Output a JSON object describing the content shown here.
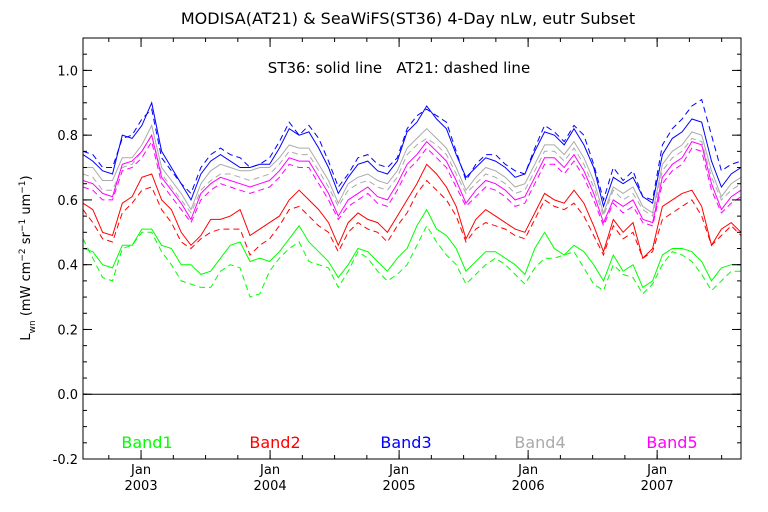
{
  "chart_data": {
    "type": "line",
    "title": "MODISA(AT21) & SeaWiFS(ST36) 4-Day nLw, eutr Subset",
    "annotation": "ST36: solid line   AT21: dashed line",
    "ylabel": "L_wn (mW cm^-2 sr^-1 um^-1)",
    "ylim": [
      -0.2,
      1.1
    ],
    "y_ticks": [
      "-0.2",
      "0.0",
      "0.2",
      "0.4",
      "0.6",
      "0.8",
      "1.0"
    ],
    "x_ticks": [
      {
        "month": "Jan",
        "year": "2003"
      },
      {
        "month": "Jan",
        "year": "2004"
      },
      {
        "month": "Jan",
        "year": "2005"
      },
      {
        "month": "Jan",
        "year": "2006"
      },
      {
        "month": "Jan",
        "year": "2007"
      }
    ],
    "x_start": 2002.55,
    "x_end": 2007.65,
    "step": 0.0833,
    "legend_placement": "bottom",
    "series": [
      {
        "name": "Band1",
        "color": "#00ff00",
        "solid": [
          0.45,
          0.44,
          0.4,
          0.39,
          0.46,
          0.46,
          0.51,
          0.51,
          0.46,
          0.45,
          0.4,
          0.4,
          0.37,
          0.38,
          0.42,
          0.46,
          0.47,
          0.41,
          0.42,
          0.41,
          0.44,
          0.48,
          0.52,
          0.47,
          0.44,
          0.41,
          0.36,
          0.4,
          0.45,
          0.44,
          0.41,
          0.38,
          0.42,
          0.45,
          0.52,
          0.57,
          0.51,
          0.49,
          0.45,
          0.38,
          0.41,
          0.44,
          0.44,
          0.42,
          0.4,
          0.37,
          0.45,
          0.5,
          0.45,
          0.43,
          0.46,
          0.44,
          0.4,
          0.35,
          0.43,
          0.38,
          0.4,
          0.33,
          0.35,
          0.43,
          0.45,
          0.45,
          0.44,
          0.41,
          0.35,
          0.39,
          0.4,
          0.4
        ],
        "dashed": [
          0.48,
          0.42,
          0.36,
          0.35,
          0.45,
          0.46,
          0.5,
          0.5,
          0.44,
          0.4,
          0.35,
          0.34,
          0.33,
          0.33,
          0.38,
          0.4,
          0.39,
          0.3,
          0.31,
          0.38,
          0.42,
          0.45,
          0.47,
          0.41,
          0.4,
          0.39,
          0.33,
          0.38,
          0.44,
          0.42,
          0.38,
          0.35,
          0.37,
          0.4,
          0.46,
          0.52,
          0.47,
          0.43,
          0.4,
          0.34,
          0.37,
          0.4,
          0.42,
          0.4,
          0.37,
          0.34,
          0.39,
          0.42,
          0.42,
          0.43,
          0.44,
          0.39,
          0.34,
          0.32,
          0.4,
          0.37,
          0.36,
          0.31,
          0.34,
          0.4,
          0.44,
          0.43,
          0.41,
          0.37,
          0.32,
          0.35,
          0.38,
          0.38
        ]
      },
      {
        "name": "Band2",
        "color": "#ff0000",
        "solid": [
          0.59,
          0.57,
          0.5,
          0.49,
          0.59,
          0.61,
          0.67,
          0.68,
          0.6,
          0.57,
          0.5,
          0.46,
          0.49,
          0.54,
          0.54,
          0.55,
          0.57,
          0.49,
          0.51,
          0.53,
          0.55,
          0.6,
          0.63,
          0.6,
          0.57,
          0.53,
          0.46,
          0.53,
          0.56,
          0.54,
          0.53,
          0.5,
          0.55,
          0.6,
          0.65,
          0.71,
          0.68,
          0.64,
          0.58,
          0.48,
          0.54,
          0.57,
          0.55,
          0.53,
          0.51,
          0.5,
          0.56,
          0.62,
          0.6,
          0.59,
          0.63,
          0.59,
          0.52,
          0.44,
          0.54,
          0.5,
          0.53,
          0.42,
          0.45,
          0.58,
          0.6,
          0.62,
          0.63,
          0.58,
          0.46,
          0.51,
          0.53,
          0.5
        ],
        "dashed": [
          0.57,
          0.53,
          0.48,
          0.47,
          0.56,
          0.59,
          0.63,
          0.64,
          0.57,
          0.53,
          0.47,
          0.45,
          0.48,
          0.5,
          0.51,
          0.51,
          0.51,
          0.43,
          0.46,
          0.48,
          0.52,
          0.57,
          0.58,
          0.55,
          0.52,
          0.5,
          0.44,
          0.5,
          0.53,
          0.51,
          0.5,
          0.47,
          0.52,
          0.56,
          0.62,
          0.66,
          0.63,
          0.6,
          0.55,
          0.47,
          0.51,
          0.53,
          0.52,
          0.51,
          0.49,
          0.48,
          0.54,
          0.6,
          0.58,
          0.57,
          0.59,
          0.55,
          0.49,
          0.43,
          0.52,
          0.48,
          0.5,
          0.42,
          0.44,
          0.54,
          0.56,
          0.58,
          0.6,
          0.55,
          0.46,
          0.49,
          0.52,
          0.49
        ]
      },
      {
        "name": "Band3",
        "color": "#0000ff",
        "solid": [
          0.74,
          0.72,
          0.69,
          0.68,
          0.8,
          0.79,
          0.83,
          0.9,
          0.75,
          0.7,
          0.65,
          0.6,
          0.68,
          0.72,
          0.74,
          0.72,
          0.7,
          0.7,
          0.71,
          0.71,
          0.76,
          0.82,
          0.8,
          0.81,
          0.76,
          0.7,
          0.62,
          0.67,
          0.71,
          0.72,
          0.69,
          0.68,
          0.72,
          0.81,
          0.84,
          0.89,
          0.85,
          0.82,
          0.74,
          0.67,
          0.7,
          0.73,
          0.72,
          0.7,
          0.67,
          0.68,
          0.75,
          0.81,
          0.8,
          0.77,
          0.82,
          0.77,
          0.7,
          0.58,
          0.67,
          0.65,
          0.67,
          0.61,
          0.59,
          0.74,
          0.79,
          0.81,
          0.85,
          0.84,
          0.72,
          0.64,
          0.68,
          0.7
        ],
        "dashed": [
          0.75,
          0.74,
          0.7,
          0.7,
          0.79,
          0.8,
          0.85,
          0.88,
          0.73,
          0.69,
          0.65,
          0.62,
          0.7,
          0.74,
          0.76,
          0.74,
          0.73,
          0.7,
          0.71,
          0.73,
          0.78,
          0.84,
          0.8,
          0.83,
          0.79,
          0.72,
          0.64,
          0.68,
          0.73,
          0.74,
          0.71,
          0.7,
          0.73,
          0.82,
          0.86,
          0.88,
          0.86,
          0.84,
          0.75,
          0.66,
          0.71,
          0.74,
          0.74,
          0.71,
          0.69,
          0.68,
          0.76,
          0.83,
          0.81,
          0.78,
          0.83,
          0.8,
          0.71,
          0.6,
          0.7,
          0.66,
          0.69,
          0.61,
          0.6,
          0.77,
          0.82,
          0.85,
          0.89,
          0.91,
          0.8,
          0.69,
          0.71,
          0.72
        ]
      },
      {
        "name": "Band4",
        "color": "#aaaaaa",
        "solid": [
          0.7,
          0.7,
          0.66,
          0.66,
          0.73,
          0.73,
          0.77,
          0.83,
          0.7,
          0.66,
          0.62,
          0.57,
          0.65,
          0.69,
          0.71,
          0.7,
          0.69,
          0.69,
          0.7,
          0.7,
          0.73,
          0.77,
          0.76,
          0.76,
          0.71,
          0.66,
          0.59,
          0.65,
          0.67,
          0.68,
          0.66,
          0.65,
          0.69,
          0.76,
          0.79,
          0.82,
          0.79,
          0.76,
          0.7,
          0.63,
          0.67,
          0.7,
          0.69,
          0.67,
          0.64,
          0.65,
          0.71,
          0.77,
          0.77,
          0.74,
          0.78,
          0.73,
          0.66,
          0.56,
          0.64,
          0.62,
          0.64,
          0.58,
          0.56,
          0.71,
          0.75,
          0.77,
          0.81,
          0.8,
          0.69,
          0.61,
          0.65,
          0.67
        ],
        "dashed": [
          0.68,
          0.67,
          0.63,
          0.63,
          0.7,
          0.71,
          0.75,
          0.8,
          0.68,
          0.64,
          0.6,
          0.56,
          0.63,
          0.66,
          0.68,
          0.68,
          0.67,
          0.66,
          0.67,
          0.68,
          0.71,
          0.75,
          0.74,
          0.74,
          0.69,
          0.64,
          0.58,
          0.63,
          0.65,
          0.66,
          0.64,
          0.63,
          0.67,
          0.74,
          0.77,
          0.79,
          0.77,
          0.74,
          0.68,
          0.62,
          0.65,
          0.68,
          0.67,
          0.65,
          0.62,
          0.63,
          0.69,
          0.75,
          0.75,
          0.72,
          0.76,
          0.71,
          0.64,
          0.55,
          0.63,
          0.6,
          0.62,
          0.57,
          0.55,
          0.69,
          0.73,
          0.75,
          0.79,
          0.78,
          0.67,
          0.6,
          0.63,
          0.65
        ]
      },
      {
        "name": "Band5",
        "color": "#ff00ff",
        "solid": [
          0.66,
          0.65,
          0.62,
          0.61,
          0.71,
          0.72,
          0.75,
          0.8,
          0.67,
          0.63,
          0.59,
          0.54,
          0.62,
          0.65,
          0.67,
          0.66,
          0.65,
          0.64,
          0.65,
          0.66,
          0.69,
          0.73,
          0.72,
          0.72,
          0.67,
          0.62,
          0.55,
          0.6,
          0.62,
          0.64,
          0.61,
          0.6,
          0.65,
          0.71,
          0.74,
          0.78,
          0.75,
          0.72,
          0.66,
          0.59,
          0.63,
          0.66,
          0.65,
          0.63,
          0.6,
          0.61,
          0.67,
          0.73,
          0.73,
          0.7,
          0.74,
          0.69,
          0.62,
          0.53,
          0.6,
          0.58,
          0.6,
          0.54,
          0.53,
          0.67,
          0.71,
          0.73,
          0.78,
          0.77,
          0.65,
          0.57,
          0.61,
          0.63
        ],
        "dashed": [
          0.64,
          0.63,
          0.6,
          0.6,
          0.69,
          0.7,
          0.73,
          0.78,
          0.65,
          0.61,
          0.57,
          0.53,
          0.6,
          0.63,
          0.65,
          0.64,
          0.63,
          0.62,
          0.63,
          0.64,
          0.67,
          0.71,
          0.7,
          0.7,
          0.65,
          0.6,
          0.54,
          0.58,
          0.6,
          0.62,
          0.59,
          0.58,
          0.63,
          0.69,
          0.72,
          0.76,
          0.73,
          0.7,
          0.64,
          0.58,
          0.61,
          0.64,
          0.63,
          0.61,
          0.58,
          0.59,
          0.65,
          0.71,
          0.71,
          0.68,
          0.72,
          0.67,
          0.6,
          0.52,
          0.59,
          0.56,
          0.58,
          0.53,
          0.52,
          0.65,
          0.69,
          0.71,
          0.76,
          0.75,
          0.63,
          0.56,
          0.59,
          0.61
        ]
      }
    ]
  }
}
